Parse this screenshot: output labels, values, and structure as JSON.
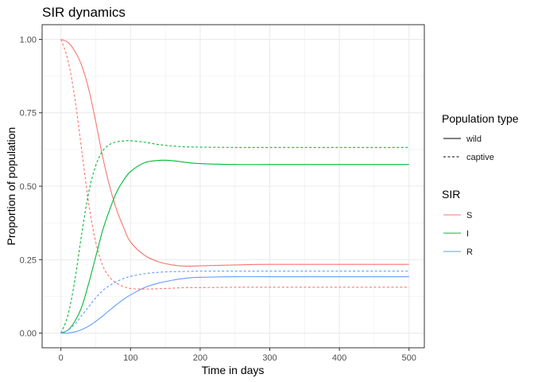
{
  "chart_data": {
    "type": "line",
    "title": "SIR dynamics",
    "xlabel": "Time in days",
    "ylabel": "Proportion of population",
    "xlim": [
      -27,
      522
    ],
    "ylim": [
      -0.05,
      1.05
    ],
    "x_ticks": [
      0,
      100,
      200,
      300,
      400,
      500
    ],
    "y_ticks": [
      0.0,
      0.25,
      0.5,
      0.75,
      1.0
    ],
    "x_tick_labels": [
      "0",
      "100",
      "200",
      "300",
      "400",
      "500"
    ],
    "y_tick_labels": [
      "0.00",
      "0.25",
      "0.50",
      "0.75",
      "1.00"
    ],
    "grid": true,
    "legend_placement": "right",
    "legends": {
      "population_type": {
        "title": "Population type",
        "entries": [
          {
            "label": "wild",
            "dash": "solid"
          },
          {
            "label": "captive",
            "dash": "dashed"
          }
        ]
      },
      "sir": {
        "title": "SIR",
        "entries": [
          {
            "label": "S",
            "color": "#F8766D"
          },
          {
            "label": "I",
            "color": "#00BA38"
          },
          {
            "label": "R",
            "color": "#619CFF"
          }
        ]
      }
    },
    "series": [
      {
        "name": "S",
        "population": "wild",
        "color": "#F8766D",
        "dash": "solid",
        "x": [
          0,
          10,
          20,
          30,
          40,
          50,
          60,
          70,
          80,
          90,
          100,
          120,
          140,
          160,
          180,
          200,
          250,
          300,
          400,
          500
        ],
        "y": [
          1.0,
          0.99,
          0.96,
          0.91,
          0.83,
          0.72,
          0.6,
          0.5,
          0.42,
          0.36,
          0.31,
          0.265,
          0.243,
          0.232,
          0.228,
          0.229,
          0.232,
          0.234,
          0.234,
          0.234
        ]
      },
      {
        "name": "I",
        "population": "wild",
        "color": "#00BA38",
        "dash": "solid",
        "x": [
          0,
          10,
          20,
          30,
          40,
          50,
          60,
          70,
          80,
          90,
          100,
          120,
          140,
          160,
          180,
          200,
          250,
          300,
          400,
          500
        ],
        "y": [
          0.0,
          0.01,
          0.04,
          0.09,
          0.17,
          0.26,
          0.35,
          0.42,
          0.48,
          0.52,
          0.55,
          0.58,
          0.588,
          0.587,
          0.581,
          0.577,
          0.574,
          0.574,
          0.574,
          0.574
        ]
      },
      {
        "name": "R",
        "population": "wild",
        "color": "#619CFF",
        "dash": "solid",
        "x": [
          0,
          10,
          20,
          30,
          40,
          50,
          60,
          70,
          80,
          90,
          100,
          120,
          140,
          160,
          180,
          200,
          250,
          300,
          400,
          500
        ],
        "y": [
          0.0,
          0.0,
          0.004,
          0.012,
          0.024,
          0.04,
          0.058,
          0.078,
          0.097,
          0.115,
          0.13,
          0.155,
          0.17,
          0.18,
          0.187,
          0.19,
          0.192,
          0.192,
          0.192,
          0.192
        ]
      },
      {
        "name": "S",
        "population": "captive",
        "color": "#F8766D",
        "dash": "dashed",
        "x": [
          0,
          10,
          20,
          30,
          40,
          50,
          60,
          70,
          80,
          90,
          100,
          120,
          140,
          160,
          180,
          200,
          250,
          300,
          400,
          500
        ],
        "y": [
          1.0,
          0.93,
          0.8,
          0.62,
          0.44,
          0.31,
          0.23,
          0.19,
          0.17,
          0.158,
          0.152,
          0.15,
          0.151,
          0.153,
          0.155,
          0.155,
          0.156,
          0.156,
          0.156,
          0.156
        ]
      },
      {
        "name": "I",
        "population": "captive",
        "color": "#00BA38",
        "dash": "dashed",
        "x": [
          0,
          10,
          20,
          30,
          40,
          50,
          60,
          70,
          80,
          90,
          100,
          120,
          140,
          160,
          180,
          200,
          250,
          300,
          400,
          500
        ],
        "y": [
          0.0,
          0.06,
          0.18,
          0.34,
          0.48,
          0.57,
          0.62,
          0.642,
          0.651,
          0.654,
          0.655,
          0.65,
          0.642,
          0.637,
          0.634,
          0.633,
          0.632,
          0.632,
          0.632,
          0.632
        ]
      },
      {
        "name": "R",
        "population": "captive",
        "color": "#619CFF",
        "dash": "dashed",
        "x": [
          0,
          10,
          20,
          30,
          40,
          50,
          60,
          70,
          80,
          90,
          100,
          120,
          140,
          160,
          180,
          200,
          250,
          300,
          400,
          500
        ],
        "y": [
          0.0,
          0.01,
          0.03,
          0.06,
          0.09,
          0.12,
          0.145,
          0.162,
          0.175,
          0.186,
          0.193,
          0.202,
          0.207,
          0.209,
          0.21,
          0.211,
          0.211,
          0.211,
          0.211,
          0.211
        ]
      }
    ]
  }
}
